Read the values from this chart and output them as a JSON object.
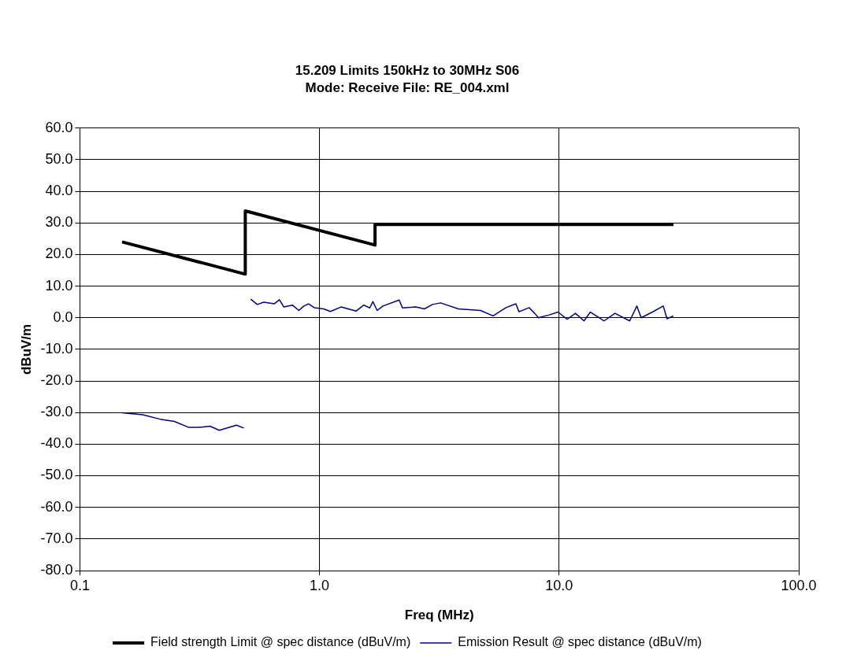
{
  "chart_data": {
    "type": "line",
    "title": "15.209 Limits 150kHz to 30MHz S06",
    "subtitle": "Mode: Receive File: RE_004.xml",
    "xlabel": "Freq (MHz)",
    "ylabel": "dBuV/m",
    "log": "x",
    "xlim": [
      0.1,
      100
    ],
    "xticks": [
      0.1,
      {
        "value": 1,
        "label": "1.0"
      },
      {
        "value": 10,
        "label": "10.0"
      },
      {
        "value": 100,
        "label": "100.0"
      }
    ],
    "ylim": [
      -80,
      60
    ],
    "yticks": [
      {
        "value": -80,
        "label": "-80.0"
      },
      {
        "value": -70,
        "label": "-70.0"
      },
      {
        "value": -60,
        "label": "-60.0"
      },
      {
        "value": -50,
        "label": "-50.0"
      },
      {
        "value": -40,
        "label": "-40.0"
      },
      {
        "value": -30,
        "label": "-30.0"
      },
      {
        "value": -20,
        "label": "-20.0"
      },
      {
        "value": -10,
        "label": "-10.0"
      },
      {
        "value": 0,
        "label": "0.0"
      },
      {
        "value": 10,
        "label": "10.0"
      },
      {
        "value": 20,
        "label": "20.0"
      },
      {
        "value": 30,
        "label": "30.0"
      },
      {
        "value": 40,
        "label": "40.0"
      },
      {
        "value": 50,
        "label": "50.0"
      },
      {
        "value": 60,
        "label": "60.0"
      }
    ],
    "grid": true,
    "legend": "bottom",
    "marker": "none",
    "line_style": "solid",
    "series": [
      {
        "name": "Field strength Limit @ spec distance (dBuV/m)",
        "color": "#000000",
        "x": [
          0.15,
          0.49,
          0.49,
          1.705,
          1.705,
          30
        ],
        "values": [
          24.0,
          13.8,
          33.8,
          23.0,
          29.5,
          29.5
        ]
      },
      {
        "name": "Emission Result @ spec distance (dBuV/m)",
        "color": "#000080",
        "x": [
          0.15,
          0.183,
          0.216,
          0.248,
          0.285,
          0.313,
          0.349,
          0.382,
          0.45,
          0.483,
          null,
          0.516,
          0.55,
          0.585,
          0.647,
          0.68,
          0.71,
          0.77,
          0.82,
          0.86,
          0.9,
          0.95,
          1.04,
          1.11,
          1.23,
          1.42,
          1.53,
          1.62,
          1.67,
          1.74,
          1.84,
          2.15,
          2.22,
          2.52,
          2.74,
          2.96,
          3.2,
          3.8,
          4.7,
          5.3,
          6.0,
          6.6,
          6.8,
          7.5,
          7.9,
          8.2,
          9.1,
          9.9,
          10.8,
          11.7,
          12.7,
          13.5,
          15.4,
          17.1,
          19.7,
          21.1,
          22.0,
          24.5,
          27.2,
          28.2,
          30.0
        ],
        "values": [
          -30.1,
          -30.7,
          -32.1,
          -32.8,
          -34.7,
          -34.7,
          -34.3,
          -35.6,
          -34.0,
          -34.9,
          null,
          5.9,
          4.2,
          4.9,
          4.4,
          5.7,
          3.4,
          4.0,
          2.3,
          3.7,
          4.4,
          3.2,
          2.8,
          2.0,
          3.4,
          2.1,
          4.0,
          3.1,
          5.1,
          2.3,
          3.7,
          5.6,
          3.1,
          3.4,
          2.8,
          4.2,
          4.7,
          2.8,
          2.3,
          0.6,
          3.2,
          4.4,
          1.9,
          3.2,
          1.4,
          0.0,
          0.9,
          1.8,
          -0.5,
          1.4,
          -1.0,
          1.8,
          -1.0,
          1.4,
          -1.0,
          3.7,
          0.0,
          1.8,
          3.7,
          -0.3,
          0.6
        ]
      }
    ]
  }
}
